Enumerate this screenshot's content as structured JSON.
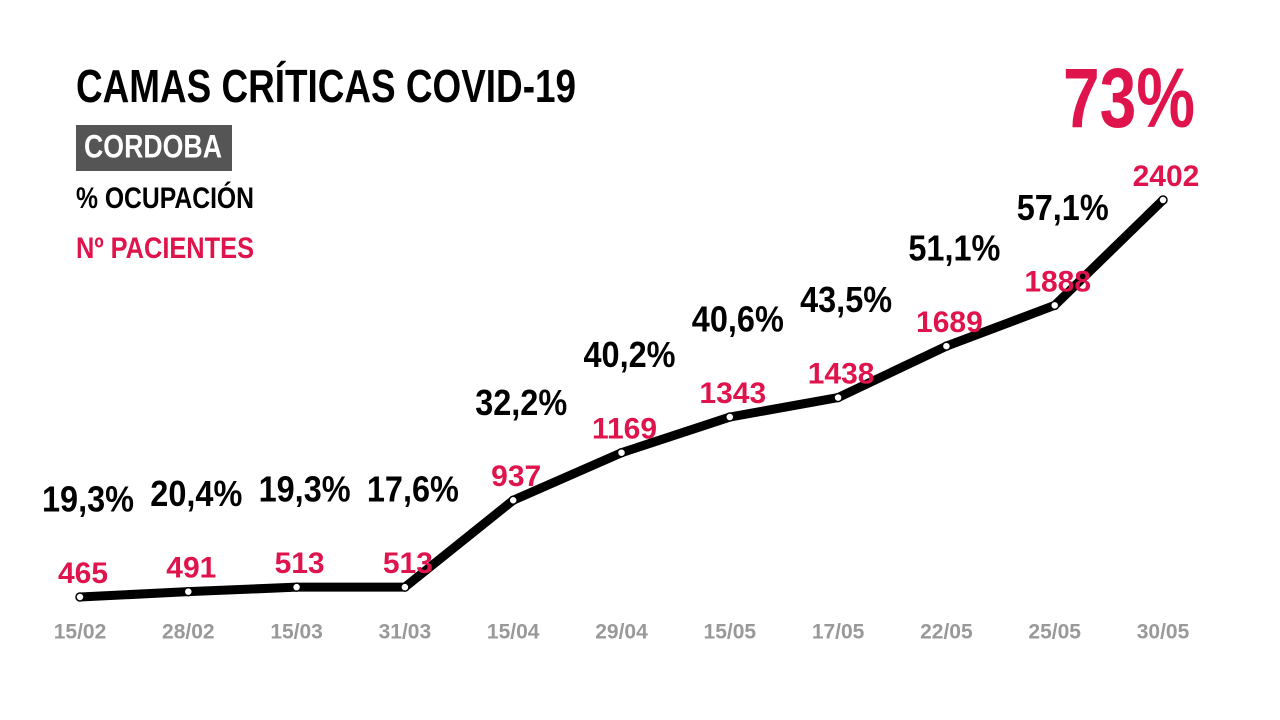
{
  "chart_data": {
    "type": "line",
    "title": "CAMAS CRÍTICAS COVID-19",
    "subtitle": "CORDOBA",
    "categories": [
      "15/02",
      "28/02",
      "15/03",
      "31/03",
      "15/04",
      "29/04",
      "15/05",
      "17/05",
      "22/05",
      "25/05",
      "30/05"
    ],
    "series": [
      {
        "name": "Nº PACIENTES",
        "color": "#e0144c",
        "line_color": "#000000",
        "values": [
          465,
          491,
          513,
          513,
          937,
          1169,
          1343,
          1438,
          1689,
          1888,
          2402
        ]
      },
      {
        "name": "% OCUPACIÓN",
        "color": "#000000",
        "values": [
          19.3,
          20.4,
          19.3,
          17.6,
          32.2,
          40.2,
          40.6,
          43.5,
          51.1,
          57.1,
          73
        ],
        "value_labels": [
          "19,3%",
          "20,4%",
          "19,3%",
          "17,6%",
          "32,2%",
          "40,2%",
          "40,6%",
          "43,5%",
          "51,1%",
          "57,1%",
          "73%"
        ]
      }
    ]
  }
}
